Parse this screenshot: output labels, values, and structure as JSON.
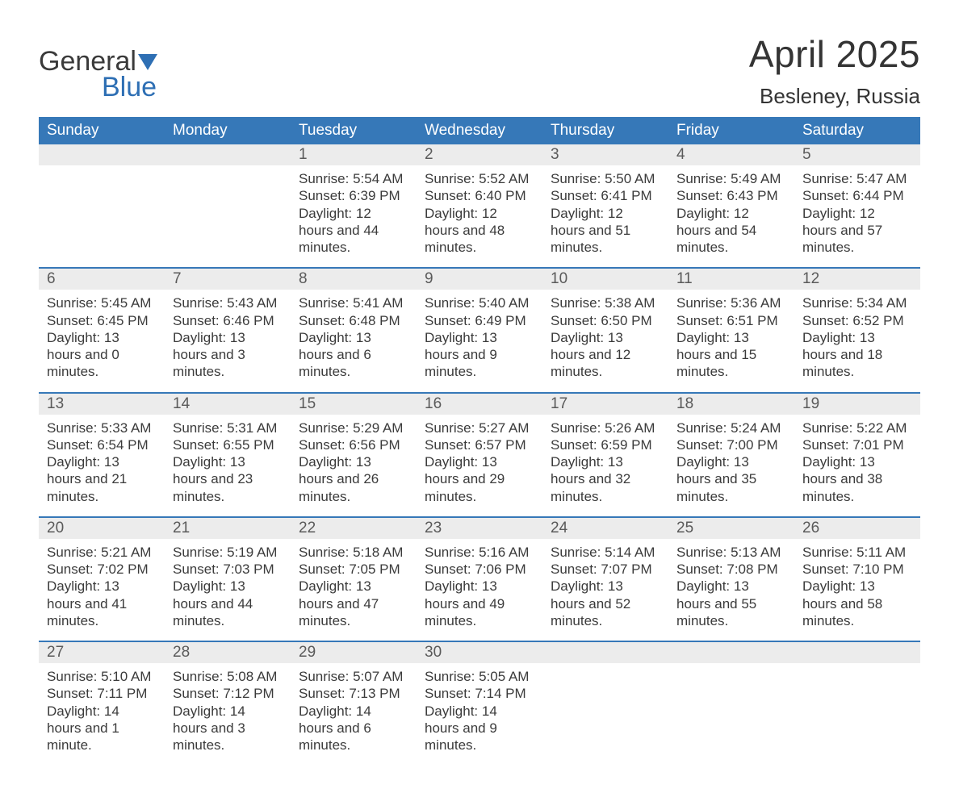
{
  "logo": {
    "word1": "General",
    "word2": "Blue"
  },
  "title": "April 2025",
  "subtitle": "Besleney, Russia",
  "colors": {
    "header_bg": "#3678b8",
    "header_text": "#ffffff",
    "daynum_bg": "#ececec",
    "week_border": "#3678b8",
    "logo_blue": "#2e6fb4",
    "text": "#333333"
  },
  "day_headers": [
    "Sunday",
    "Monday",
    "Tuesday",
    "Wednesday",
    "Thursday",
    "Friday",
    "Saturday"
  ],
  "weeks": [
    [
      {
        "num": "",
        "sunrise": "",
        "sunset": "",
        "daylight": ""
      },
      {
        "num": "",
        "sunrise": "",
        "sunset": "",
        "daylight": ""
      },
      {
        "num": "1",
        "sunrise": "Sunrise: 5:54 AM",
        "sunset": "Sunset: 6:39 PM",
        "daylight": "Daylight: 12 hours and 44 minutes."
      },
      {
        "num": "2",
        "sunrise": "Sunrise: 5:52 AM",
        "sunset": "Sunset: 6:40 PM",
        "daylight": "Daylight: 12 hours and 48 minutes."
      },
      {
        "num": "3",
        "sunrise": "Sunrise: 5:50 AM",
        "sunset": "Sunset: 6:41 PM",
        "daylight": "Daylight: 12 hours and 51 minutes."
      },
      {
        "num": "4",
        "sunrise": "Sunrise: 5:49 AM",
        "sunset": "Sunset: 6:43 PM",
        "daylight": "Daylight: 12 hours and 54 minutes."
      },
      {
        "num": "5",
        "sunrise": "Sunrise: 5:47 AM",
        "sunset": "Sunset: 6:44 PM",
        "daylight": "Daylight: 12 hours and 57 minutes."
      }
    ],
    [
      {
        "num": "6",
        "sunrise": "Sunrise: 5:45 AM",
        "sunset": "Sunset: 6:45 PM",
        "daylight": "Daylight: 13 hours and 0 minutes."
      },
      {
        "num": "7",
        "sunrise": "Sunrise: 5:43 AM",
        "sunset": "Sunset: 6:46 PM",
        "daylight": "Daylight: 13 hours and 3 minutes."
      },
      {
        "num": "8",
        "sunrise": "Sunrise: 5:41 AM",
        "sunset": "Sunset: 6:48 PM",
        "daylight": "Daylight: 13 hours and 6 minutes."
      },
      {
        "num": "9",
        "sunrise": "Sunrise: 5:40 AM",
        "sunset": "Sunset: 6:49 PM",
        "daylight": "Daylight: 13 hours and 9 minutes."
      },
      {
        "num": "10",
        "sunrise": "Sunrise: 5:38 AM",
        "sunset": "Sunset: 6:50 PM",
        "daylight": "Daylight: 13 hours and 12 minutes."
      },
      {
        "num": "11",
        "sunrise": "Sunrise: 5:36 AM",
        "sunset": "Sunset: 6:51 PM",
        "daylight": "Daylight: 13 hours and 15 minutes."
      },
      {
        "num": "12",
        "sunrise": "Sunrise: 5:34 AM",
        "sunset": "Sunset: 6:52 PM",
        "daylight": "Daylight: 13 hours and 18 minutes."
      }
    ],
    [
      {
        "num": "13",
        "sunrise": "Sunrise: 5:33 AM",
        "sunset": "Sunset: 6:54 PM",
        "daylight": "Daylight: 13 hours and 21 minutes."
      },
      {
        "num": "14",
        "sunrise": "Sunrise: 5:31 AM",
        "sunset": "Sunset: 6:55 PM",
        "daylight": "Daylight: 13 hours and 23 minutes."
      },
      {
        "num": "15",
        "sunrise": "Sunrise: 5:29 AM",
        "sunset": "Sunset: 6:56 PM",
        "daylight": "Daylight: 13 hours and 26 minutes."
      },
      {
        "num": "16",
        "sunrise": "Sunrise: 5:27 AM",
        "sunset": "Sunset: 6:57 PM",
        "daylight": "Daylight: 13 hours and 29 minutes."
      },
      {
        "num": "17",
        "sunrise": "Sunrise: 5:26 AM",
        "sunset": "Sunset: 6:59 PM",
        "daylight": "Daylight: 13 hours and 32 minutes."
      },
      {
        "num": "18",
        "sunrise": "Sunrise: 5:24 AM",
        "sunset": "Sunset: 7:00 PM",
        "daylight": "Daylight: 13 hours and 35 minutes."
      },
      {
        "num": "19",
        "sunrise": "Sunrise: 5:22 AM",
        "sunset": "Sunset: 7:01 PM",
        "daylight": "Daylight: 13 hours and 38 minutes."
      }
    ],
    [
      {
        "num": "20",
        "sunrise": "Sunrise: 5:21 AM",
        "sunset": "Sunset: 7:02 PM",
        "daylight": "Daylight: 13 hours and 41 minutes."
      },
      {
        "num": "21",
        "sunrise": "Sunrise: 5:19 AM",
        "sunset": "Sunset: 7:03 PM",
        "daylight": "Daylight: 13 hours and 44 minutes."
      },
      {
        "num": "22",
        "sunrise": "Sunrise: 5:18 AM",
        "sunset": "Sunset: 7:05 PM",
        "daylight": "Daylight: 13 hours and 47 minutes."
      },
      {
        "num": "23",
        "sunrise": "Sunrise: 5:16 AM",
        "sunset": "Sunset: 7:06 PM",
        "daylight": "Daylight: 13 hours and 49 minutes."
      },
      {
        "num": "24",
        "sunrise": "Sunrise: 5:14 AM",
        "sunset": "Sunset: 7:07 PM",
        "daylight": "Daylight: 13 hours and 52 minutes."
      },
      {
        "num": "25",
        "sunrise": "Sunrise: 5:13 AM",
        "sunset": "Sunset: 7:08 PM",
        "daylight": "Daylight: 13 hours and 55 minutes."
      },
      {
        "num": "26",
        "sunrise": "Sunrise: 5:11 AM",
        "sunset": "Sunset: 7:10 PM",
        "daylight": "Daylight: 13 hours and 58 minutes."
      }
    ],
    [
      {
        "num": "27",
        "sunrise": "Sunrise: 5:10 AM",
        "sunset": "Sunset: 7:11 PM",
        "daylight": "Daylight: 14 hours and 1 minute."
      },
      {
        "num": "28",
        "sunrise": "Sunrise: 5:08 AM",
        "sunset": "Sunset: 7:12 PM",
        "daylight": "Daylight: 14 hours and 3 minutes."
      },
      {
        "num": "29",
        "sunrise": "Sunrise: 5:07 AM",
        "sunset": "Sunset: 7:13 PM",
        "daylight": "Daylight: 14 hours and 6 minutes."
      },
      {
        "num": "30",
        "sunrise": "Sunrise: 5:05 AM",
        "sunset": "Sunset: 7:14 PM",
        "daylight": "Daylight: 14 hours and 9 minutes."
      },
      {
        "num": "",
        "sunrise": "",
        "sunset": "",
        "daylight": ""
      },
      {
        "num": "",
        "sunrise": "",
        "sunset": "",
        "daylight": ""
      },
      {
        "num": "",
        "sunrise": "",
        "sunset": "",
        "daylight": ""
      }
    ]
  ]
}
